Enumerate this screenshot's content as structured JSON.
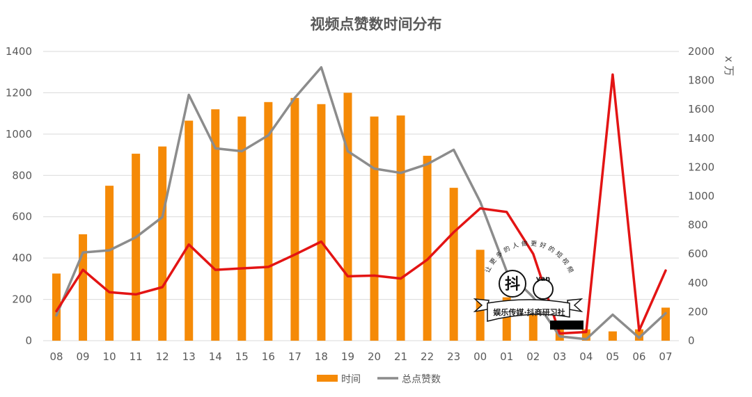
{
  "chart_data": {
    "type": "bar",
    "title": "视频点赞数时间分布",
    "categories": [
      "08",
      "09",
      "10",
      "11",
      "12",
      "13",
      "14",
      "15",
      "16",
      "17",
      "18",
      "19",
      "20",
      "21",
      "22",
      "23",
      "00",
      "01",
      "02",
      "03",
      "04",
      "05",
      "06",
      "07"
    ],
    "series": [
      {
        "name": "时间",
        "type": "bar",
        "axis": "left",
        "color": "#F58A07",
        "values": [
          325,
          515,
          750,
          905,
          940,
          1065,
          1120,
          1085,
          1155,
          1175,
          1145,
          1200,
          1085,
          1090,
          895,
          740,
          440,
          210,
          160,
          70,
          55,
          45,
          55,
          160
        ]
      },
      {
        "name": "总点赞数",
        "type": "line",
        "axis": "right",
        "color": "#8C8C8C",
        "values": [
          175,
          610,
          625,
          715,
          855,
          1700,
          1330,
          1310,
          1420,
          1680,
          1890,
          1310,
          1190,
          1160,
          1220,
          1320,
          960,
          480,
          300,
          30,
          10,
          180,
          20,
          190
        ]
      },
      {
        "type": "line",
        "axis": "right",
        "color": "#E31414",
        "values": [
          205,
          490,
          335,
          320,
          370,
          665,
          490,
          500,
          510,
          595,
          685,
          445,
          450,
          430,
          560,
          750,
          915,
          890,
          600,
          50,
          60,
          1840,
          70,
          485
        ]
      }
    ],
    "y_left": {
      "min": 0,
      "max": 1400,
      "step": 200
    },
    "y_right": {
      "min": 0,
      "max": 2000,
      "step": 200,
      "unit_label": "x 万"
    },
    "grid": true,
    "legend": "bottom",
    "watermark": {
      "arc_text": "让更多的人做更好的短视频",
      "logo_left": "抖",
      "logo_right": "yan",
      "banner": "娱乐传媒·抖商研习社"
    }
  }
}
